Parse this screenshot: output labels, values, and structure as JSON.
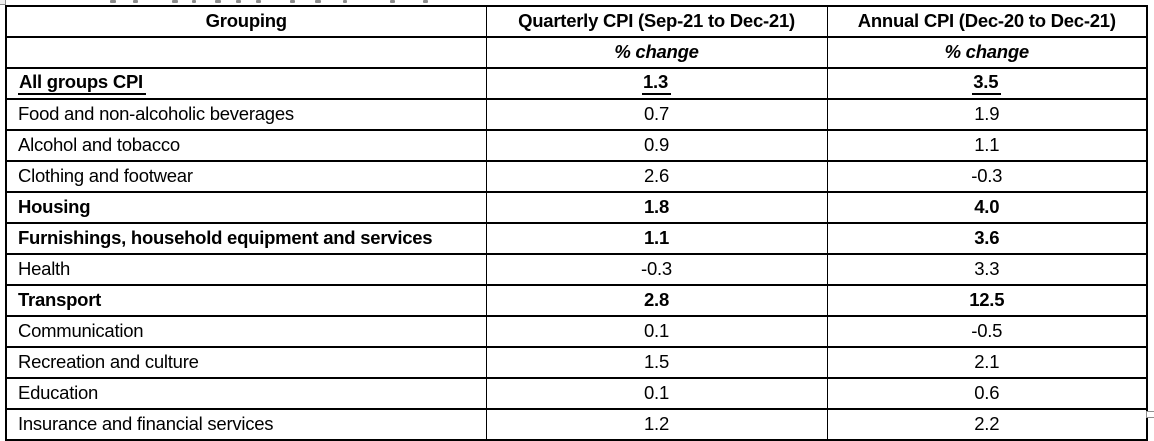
{
  "page": {
    "background": "#ffffff"
  },
  "table": {
    "border_color": "#000000",
    "text_color": "#000000",
    "header": {
      "col1": "Grouping",
      "col2": "Quarterly CPI (Sep-21 to Dec-21)",
      "col3": "Annual CPI (Dec-20 to Dec-21)"
    },
    "subheader": {
      "col1": "",
      "col2": "% change",
      "col3": "% change"
    },
    "rows": [
      {
        "group": "All groups CPI",
        "quarterly": "1.3",
        "annual": "3.5",
        "bold": true,
        "underline": true
      },
      {
        "group": "Food and non-alcoholic beverages",
        "quarterly": "0.7",
        "annual": "1.9",
        "bold": false,
        "underline": false
      },
      {
        "group": "Alcohol and tobacco",
        "quarterly": "0.9",
        "annual": "1.1",
        "bold": false,
        "underline": false
      },
      {
        "group": "Clothing and footwear",
        "quarterly": "2.6",
        "annual": "-0.3",
        "bold": false,
        "underline": false
      },
      {
        "group": "Housing",
        "quarterly": "1.8",
        "annual": "4.0",
        "bold": true,
        "underline": false
      },
      {
        "group": "Furnishings, household equipment and services",
        "quarterly": "1.1",
        "annual": "3.6",
        "bold": true,
        "underline": false
      },
      {
        "group": "Health",
        "quarterly": "-0.3",
        "annual": "3.3",
        "bold": false,
        "underline": false
      },
      {
        "group": "Transport",
        "quarterly": "2.8",
        "annual": "12.5",
        "bold": true,
        "underline": false
      },
      {
        "group": "Communication",
        "quarterly": "0.1",
        "annual": "-0.5",
        "bold": false,
        "underline": false
      },
      {
        "group": "Recreation and culture",
        "quarterly": "1.5",
        "annual": "2.1",
        "bold": false,
        "underline": false
      },
      {
        "group": "Education",
        "quarterly": "0.1",
        "annual": "0.6",
        "bold": false,
        "underline": false
      },
      {
        "group": "Insurance and financial services",
        "quarterly": "1.2",
        "annual": "2.2",
        "bold": false,
        "underline": false
      }
    ]
  },
  "chart_data": {
    "type": "table",
    "columns": [
      "Grouping",
      "Quarterly CPI (Sep-21 to Dec-21) % change",
      "Annual CPI (Dec-20 to Dec-21) % change"
    ],
    "rows": [
      [
        "All groups CPI",
        1.3,
        3.5
      ],
      [
        "Food and non-alcoholic beverages",
        0.7,
        1.9
      ],
      [
        "Alcohol and tobacco",
        0.9,
        1.1
      ],
      [
        "Clothing and footwear",
        2.6,
        -0.3
      ],
      [
        "Housing",
        1.8,
        4.0
      ],
      [
        "Furnishings, household equipment and services",
        1.1,
        3.6
      ],
      [
        "Health",
        -0.3,
        3.3
      ],
      [
        "Transport",
        2.8,
        12.5
      ],
      [
        "Communication",
        0.1,
        -0.5
      ],
      [
        "Recreation and culture",
        1.5,
        2.1
      ],
      [
        "Education",
        0.1,
        0.6
      ],
      [
        "Insurance and financial services",
        1.2,
        2.2
      ]
    ]
  }
}
